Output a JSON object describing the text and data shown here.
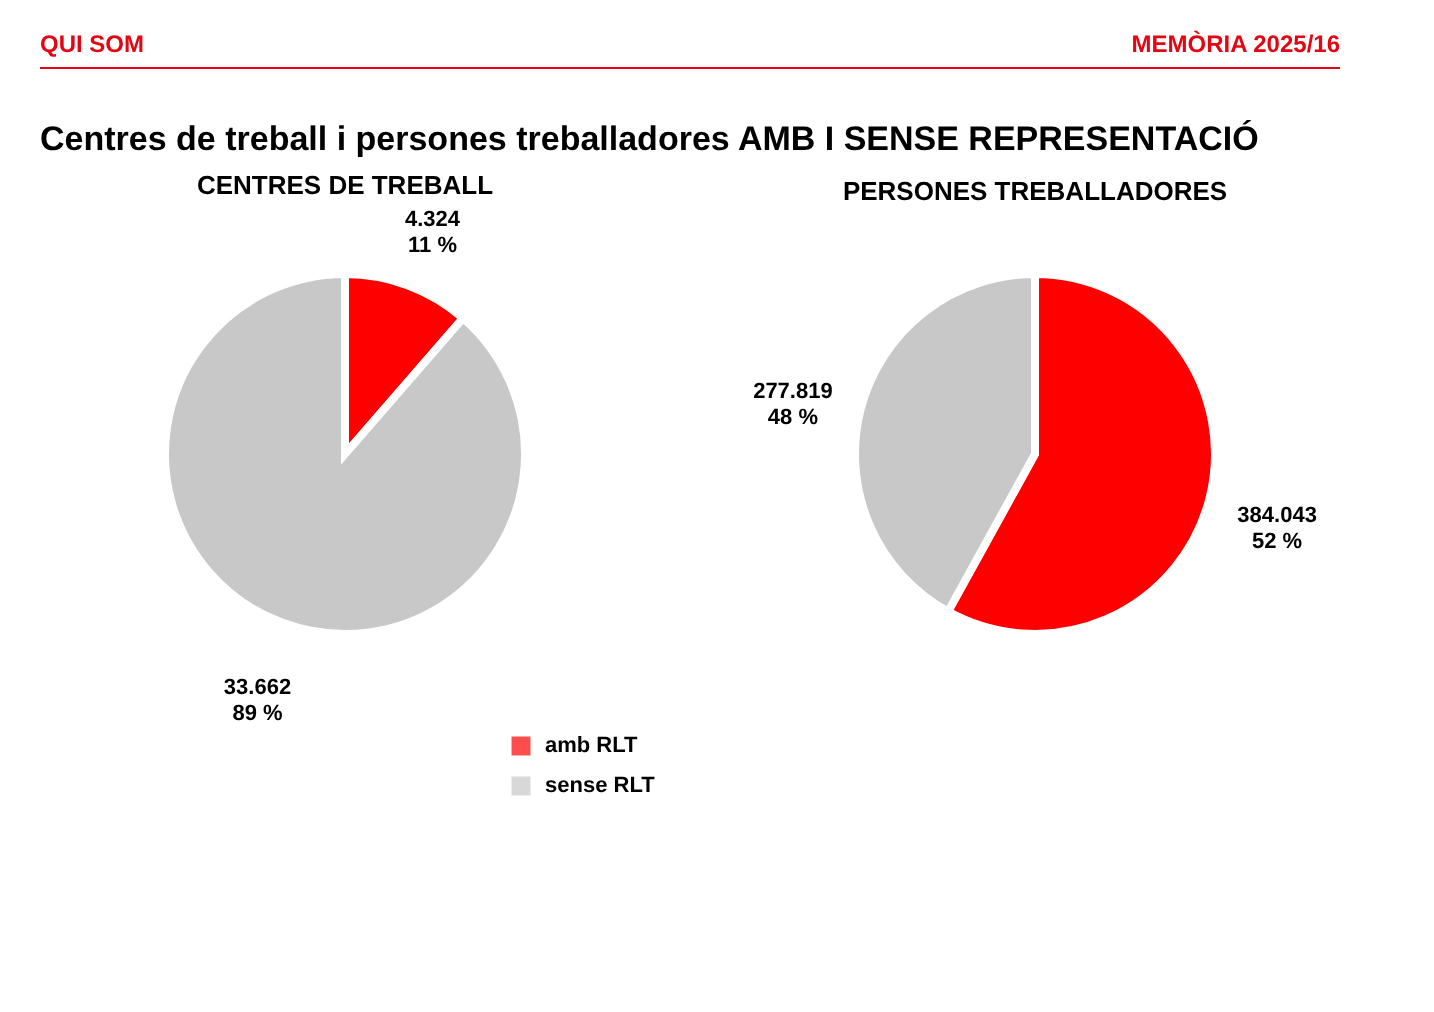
{
  "chart_data": [
    {
      "type": "pie",
      "title": "CENTRES DE TREBALL",
      "categories": [
        "amb RLT",
        "sense RLT"
      ],
      "values": [
        4324,
        33662
      ],
      "colors": [
        "#ff0000",
        "#c8c8c8"
      ],
      "value_labels": [
        "4.324\n11 %",
        "33.662\n89 %"
      ],
      "legend": "bottom right",
      "annotations": [
        "QUI SOM",
        "MEMÒRIA 2025/16",
        "Centres de treball i persones treballadores AMB I SENSE REPRESENTACIÓ"
      ]
    },
    {
      "type": "pie",
      "title": "PERSONES TREBALLADORES",
      "categories": [
        null,
        null
      ],
      "values": [
        384043,
        277819
      ],
      "colors": [
        "#ff0000",
        "#c8c8c8"
      ],
      "value_labels": [
        "384.043\n52 %",
        "277.819\n48 %"
      ]
    }
  ]
}
